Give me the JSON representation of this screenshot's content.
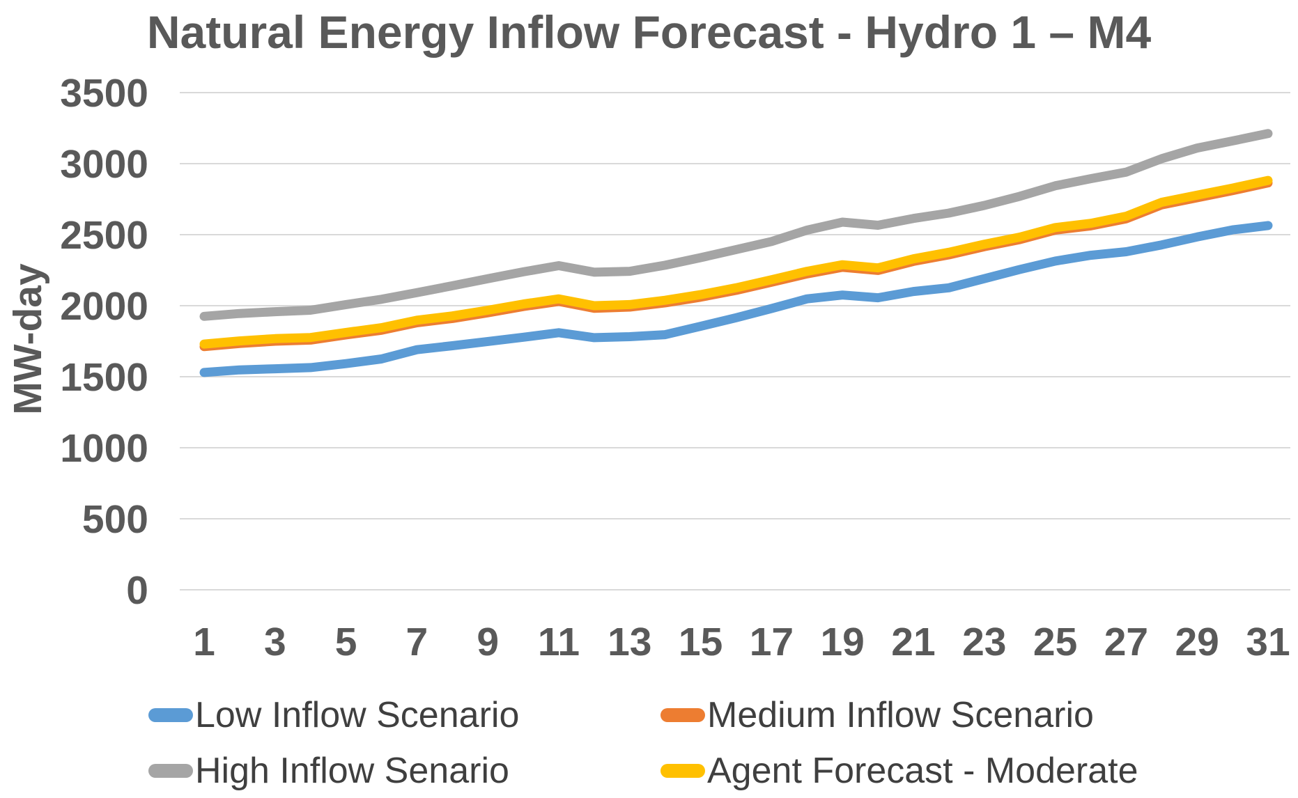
{
  "chart_data": {
    "type": "line",
    "title": "Natural Energy Inflow Forecast - Hydro 1 – M4",
    "ylabel": "MW-day",
    "xlabel": "",
    "x": [
      1,
      2,
      3,
      4,
      5,
      6,
      7,
      8,
      9,
      10,
      11,
      12,
      13,
      14,
      15,
      16,
      17,
      18,
      19,
      20,
      21,
      22,
      23,
      24,
      25,
      26,
      27,
      28,
      29,
      30,
      31
    ],
    "xtick_labels": [
      "1",
      "3",
      "5",
      "7",
      "9",
      "11",
      "13",
      "15",
      "17",
      "19",
      "21",
      "23",
      "25",
      "27",
      "29",
      "31"
    ],
    "yticks": [
      0,
      500,
      1000,
      1500,
      2000,
      2500,
      3000,
      3500
    ],
    "ylim": [
      0,
      3500
    ],
    "grid": "horizontal",
    "gridline_color": "#D9D9D9",
    "legend_position": "bottom",
    "series": [
      {
        "name": "Low Inflow Scenario",
        "color": "#5B9BD5",
        "values": [
          1530,
          1548,
          1556,
          1564,
          1592,
          1625,
          1690,
          1718,
          1748,
          1778,
          1810,
          1775,
          1782,
          1796,
          1855,
          1915,
          1980,
          2048,
          2075,
          2056,
          2100,
          2126,
          2190,
          2255,
          2314,
          2355,
          2380,
          2428,
          2484,
          2534,
          2564
        ]
      },
      {
        "name": "Medium Inflow Scenario",
        "color": "#ED7D31",
        "values": [
          1712,
          1734,
          1750,
          1758,
          1794,
          1827,
          1880,
          1910,
          1950,
          1994,
          2030,
          1982,
          1990,
          2020,
          2060,
          2108,
          2165,
          2224,
          2270,
          2248,
          2312,
          2358,
          2415,
          2465,
          2532,
          2562,
          2612,
          2710,
          2760,
          2810,
          2864
        ]
      },
      {
        "name": "High Inflow Senario",
        "color": "#A5A5A5",
        "values": [
          1925,
          1945,
          1958,
          1968,
          2008,
          2045,
          2092,
          2140,
          2190,
          2238,
          2282,
          2236,
          2242,
          2285,
          2338,
          2395,
          2452,
          2532,
          2588,
          2566,
          2614,
          2652,
          2706,
          2770,
          2844,
          2894,
          2940,
          3035,
          3110,
          3160,
          3212
        ]
      },
      {
        "name": "Agent Forecast - Moderate",
        "color": "#FFC000",
        "values": [
          1730,
          1752,
          1768,
          1776,
          1812,
          1845,
          1898,
          1928,
          1968,
          2012,
          2048,
          2000,
          2008,
          2038,
          2078,
          2126,
          2183,
          2242,
          2288,
          2266,
          2330,
          2376,
          2433,
          2483,
          2550,
          2580,
          2630,
          2728,
          2778,
          2828,
          2882
        ]
      }
    ]
  }
}
